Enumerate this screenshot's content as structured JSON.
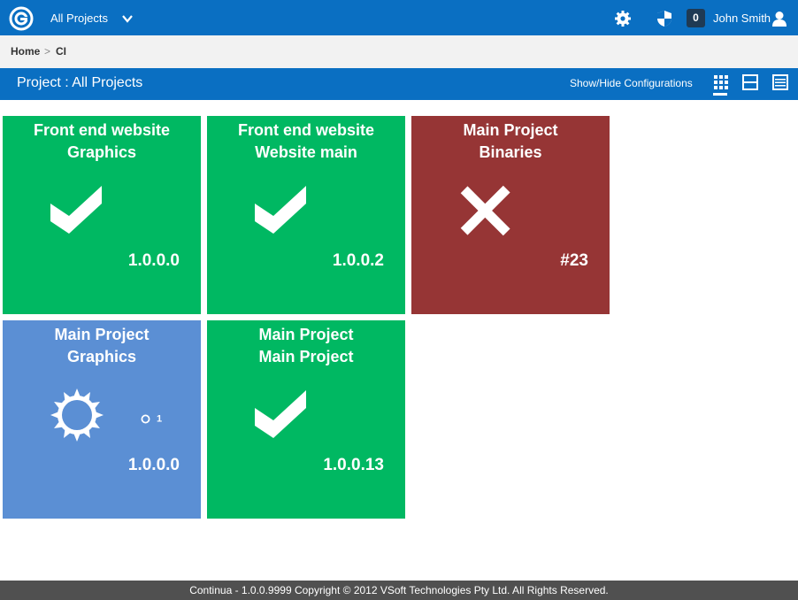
{
  "topbar": {
    "project_selector": "All Projects",
    "notification_count": "0",
    "user_name": "John Smith"
  },
  "breadcrumb": {
    "home": "Home",
    "separator": ">",
    "current": "CI"
  },
  "header": {
    "title": "Project : All Projects",
    "show_hide_label": "Show/Hide Configurations"
  },
  "tiles": [
    {
      "line1": "Front end website",
      "line2": "Graphics",
      "status": "success",
      "version": "1.0.0.0",
      "color": "#00b862"
    },
    {
      "line1": "Front end website",
      "line2": "Website main",
      "status": "success",
      "version": "1.0.0.2",
      "color": "#00b862"
    },
    {
      "line1": "Main Project",
      "line2": "Binaries",
      "status": "failed",
      "version": "#23",
      "color": "#963535"
    },
    {
      "line1": "Main Project",
      "line2": "Graphics",
      "status": "in-progress",
      "version": "1.0.0.0",
      "queued": "1",
      "color": "#5b8fd4"
    },
    {
      "line1": "Main Project",
      "line2": "Main Project",
      "status": "success",
      "version": "1.0.0.13",
      "color": "#00b862"
    }
  ],
  "footer": {
    "text": "Continua - 1.0.0.9999 Copyright © 2012 VSoft Technologies Pty Ltd. All Rights Reserved."
  }
}
